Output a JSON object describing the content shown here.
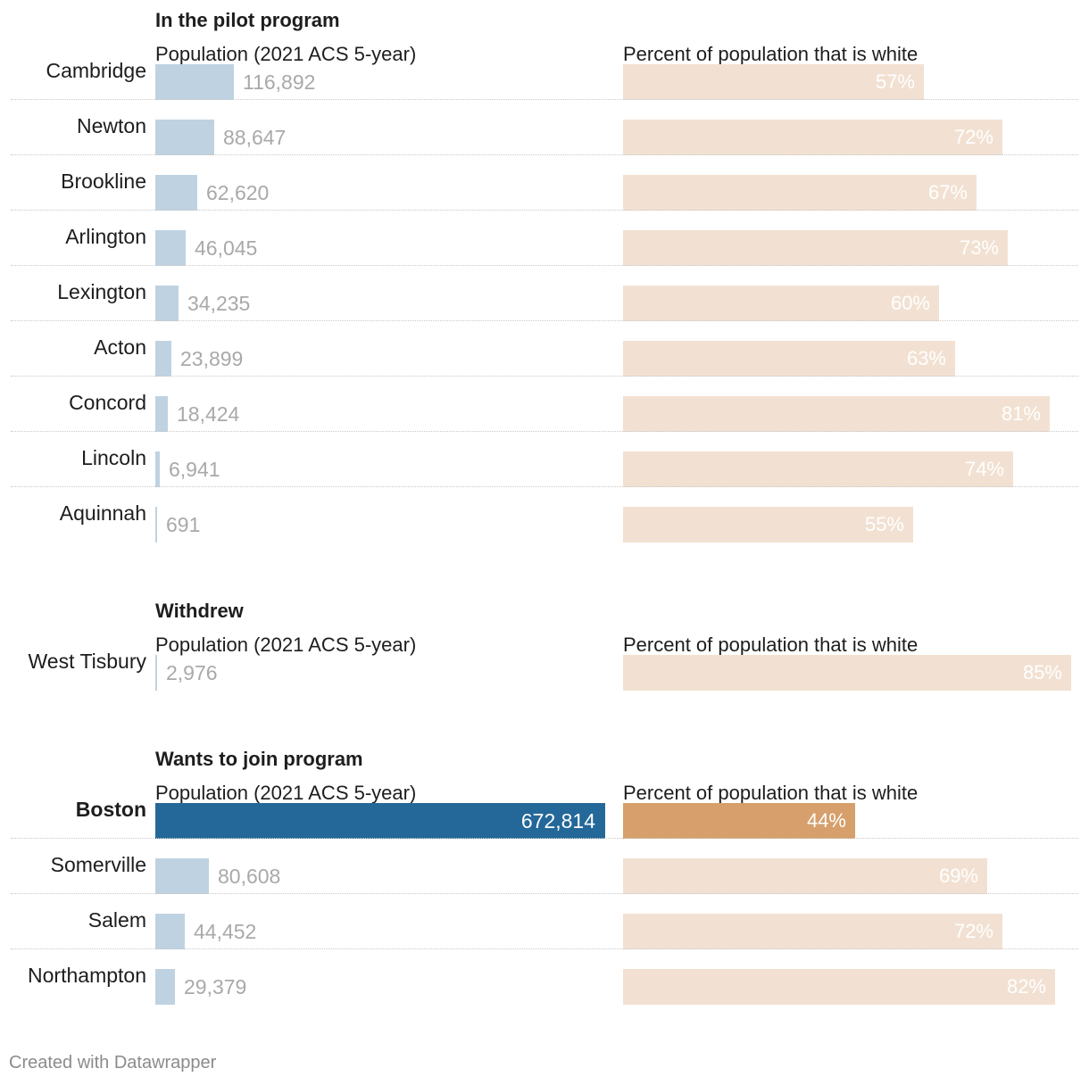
{
  "chart_data": [
    {
      "type": "bar",
      "title": "In the pilot program",
      "population_label": "Population (2021 ACS 5-year)",
      "percent_label": "Percent of population that is white",
      "categories": [
        "Cambridge",
        "Newton",
        "Brookline",
        "Arlington",
        "Lexington",
        "Acton",
        "Concord",
        "Lincoln",
        "Aquinnah"
      ],
      "series": [
        {
          "name": "Population (2021 ACS 5-year)",
          "values": [
            116892,
            88647,
            62620,
            46045,
            34235,
            23899,
            18424,
            6941,
            691
          ],
          "display": [
            "116,892",
            "88,647",
            "62,620",
            "46,045",
            "34,235",
            "23,899",
            "18,424",
            "6,941",
            "691"
          ]
        },
        {
          "name": "Percent of population that is white",
          "values": [
            57,
            72,
            67,
            73,
            60,
            63,
            81,
            74,
            55
          ],
          "display": [
            "57%",
            "72%",
            "67%",
            "73%",
            "60%",
            "63%",
            "81%",
            "74%",
            "55%"
          ]
        }
      ],
      "highlight": []
    },
    {
      "type": "bar",
      "title": "Withdrew",
      "population_label": "Population (2021 ACS 5-year)",
      "percent_label": "Percent of population that is white",
      "categories": [
        "West Tisbury"
      ],
      "series": [
        {
          "name": "Population (2021 ACS 5-year)",
          "values": [
            2976
          ],
          "display": [
            "2,976"
          ]
        },
        {
          "name": "Percent of population that is white",
          "values": [
            85
          ],
          "display": [
            "85%"
          ]
        }
      ],
      "highlight": []
    },
    {
      "type": "bar",
      "title": "Wants to join program",
      "population_label": "Population (2021 ACS 5-year)",
      "percent_label": "Percent of population that is white",
      "categories": [
        "Boston",
        "Somerville",
        "Salem",
        "Northampton"
      ],
      "series": [
        {
          "name": "Population (2021 ACS 5-year)",
          "values": [
            672814,
            80608,
            44452,
            29379
          ],
          "display": [
            "672,814",
            "80,608",
            "44,452",
            "29,379"
          ]
        },
        {
          "name": "Percent of population that is white",
          "values": [
            44,
            69,
            72,
            82
          ],
          "display": [
            "44%",
            "69%",
            "72%",
            "82%"
          ]
        }
      ],
      "highlight": [
        "Boston"
      ]
    }
  ],
  "scales": {
    "population_max": 672814,
    "percent_max": 85
  },
  "colors": {
    "population_bar": "#bfd2e1",
    "population_highlight": "#246899",
    "percent_bar": "#f2e1d2",
    "percent_highlight": "#d69f6b"
  },
  "footer": {
    "credit": "Created with Datawrapper"
  }
}
